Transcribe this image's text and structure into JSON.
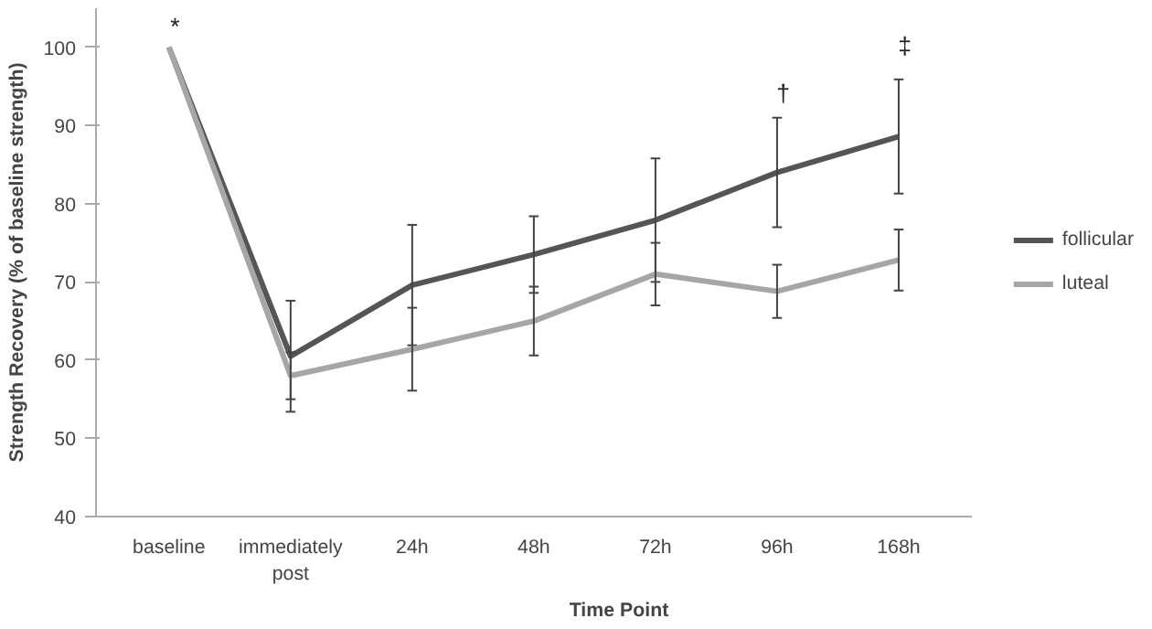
{
  "chart_data": {
    "type": "line",
    "xlabel": "Time Point",
    "ylabel": "Strength Recovery (% of baseline strength)",
    "categories": [
      "baseline",
      "immediately post",
      "24h",
      "48h",
      "72h",
      "96h",
      "168h"
    ],
    "series": [
      {
        "name": "follicular",
        "color": "#555555",
        "values": [
          100,
          60.5,
          69.6,
          73.5,
          77.9,
          84,
          88.6
        ],
        "errors": [
          null,
          7.1,
          7.7,
          4.9,
          7.9,
          7,
          7.3
        ]
      },
      {
        "name": "luteal",
        "color": "#a6a6a6",
        "values": [
          100,
          58,
          61.4,
          65,
          71,
          68.8,
          72.8
        ],
        "errors": [
          null,
          3,
          5.3,
          4.4,
          4,
          3.4,
          3.9
        ]
      }
    ],
    "ylim": [
      40,
      105
    ],
    "yticks": [
      40,
      50,
      60,
      70,
      80,
      90,
      100
    ],
    "grid": false,
    "legend": "right",
    "marker": "none",
    "line_style": "solid",
    "annotations": [
      "*",
      "†",
      "‡"
    ]
  }
}
